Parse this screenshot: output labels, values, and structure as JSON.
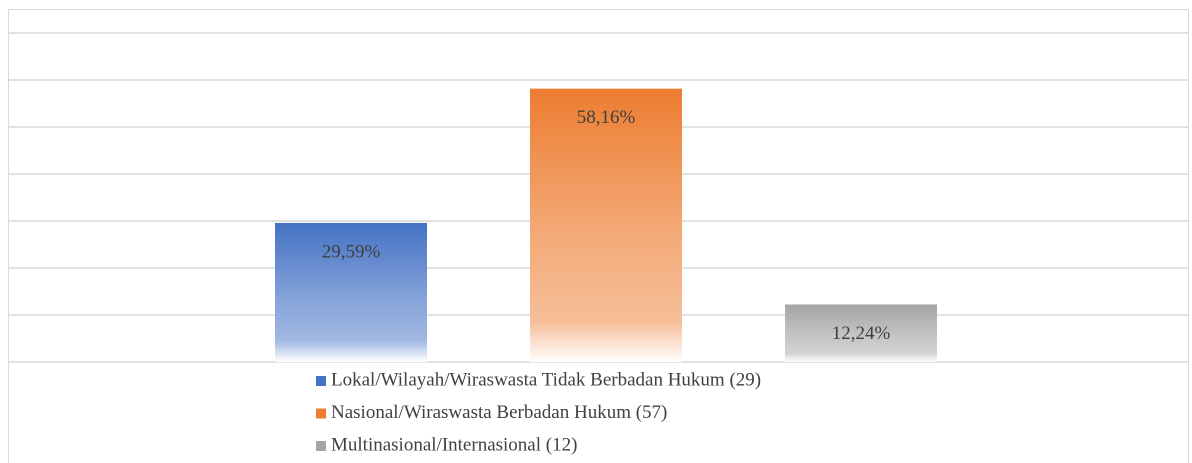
{
  "chart_data": {
    "type": "bar",
    "series": [
      {
        "name": "Lokal/Wilayah/Wiraswasta Tidak Berbadan Hukum (29)",
        "color": "#4472c4",
        "values": [
          29.59
        ],
        "value_labels": [
          "29,59%"
        ]
      },
      {
        "name": "Nasional/Wiraswasta Berbadan Hukum (57)",
        "color": "#ed7d31",
        "values": [
          58.16
        ],
        "value_labels": [
          "58,16%"
        ]
      },
      {
        "name": "Multinasional/Internasional (12)",
        "color": "#a5a5a5",
        "values": [
          12.24
        ],
        "value_labels": [
          "12,24%"
        ]
      }
    ],
    "ylim": [
      0,
      70
    ],
    "yticks": [
      0,
      10,
      20,
      30,
      40,
      50,
      60,
      70
    ],
    "grid": true,
    "legend": "bottom"
  }
}
